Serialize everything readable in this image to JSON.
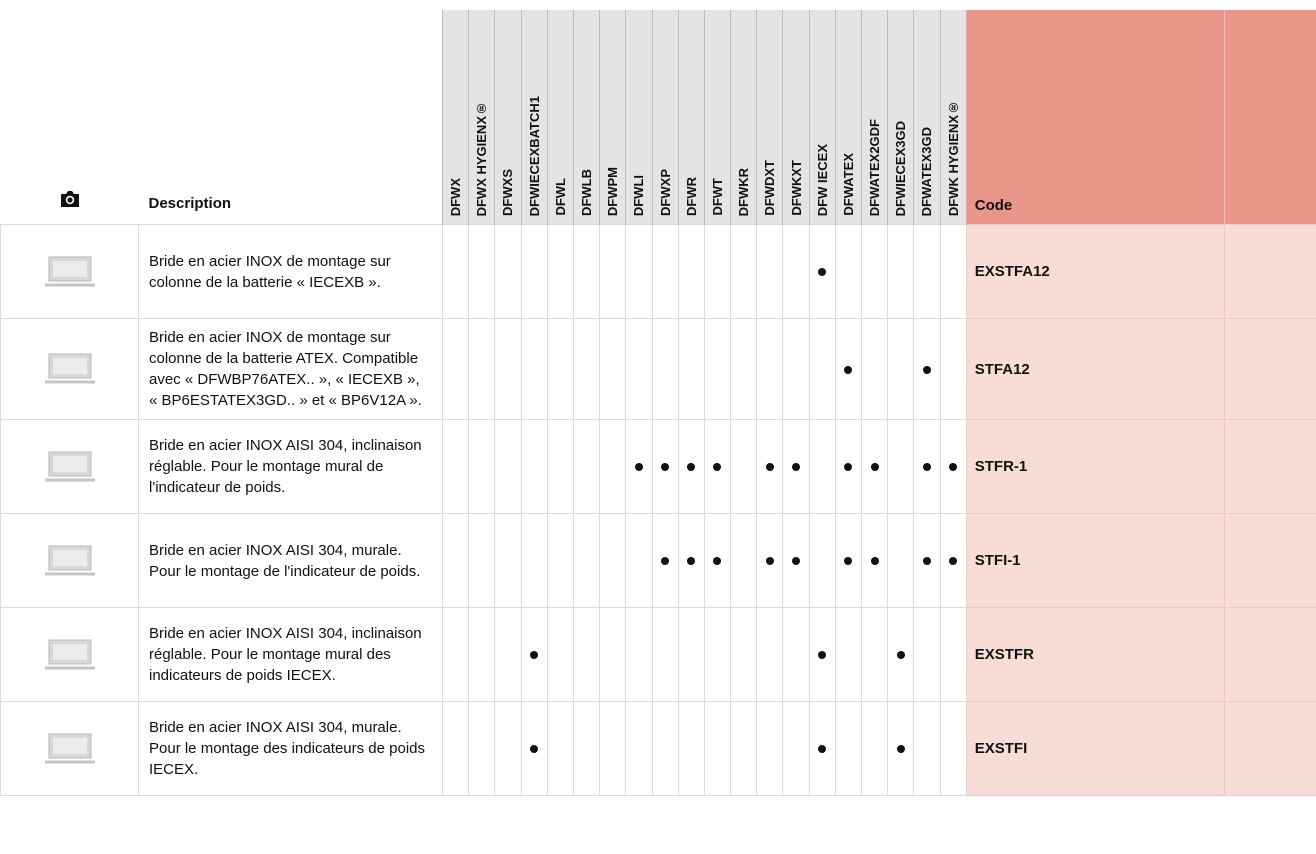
{
  "table": {
    "header": {
      "description": "Description",
      "code": "Code",
      "models": [
        "DFWX",
        "DFWX HYGIENX®",
        "DFWXS",
        "DFWIECEXBATCH1",
        "DFWL",
        "DFWLB",
        "DFWPM",
        "DFWLI",
        "DFWXP",
        "DFWR",
        "DFWT",
        "DFWKR",
        "DFWDXT",
        "DFWKXT",
        "DFW IECEX",
        "DFWATEX",
        "DFWATEX2GDF",
        "DFWIECEX3GD",
        "DFWATEX3GD",
        "DFWK HYGIENX®"
      ]
    },
    "rows": [
      {
        "description": "Bride en acier INOX de montage sur colonne de la batterie « IECEXB ».",
        "code": "EXSTFA12",
        "compatible": [
          "DFW IECEX"
        ]
      },
      {
        "description": "Bride en acier INOX de montage sur colonne de la batterie ATEX. Compatible avec « DFWBP76ATEX.. », « IECEXB », « BP6ESTATEX3GD.. » et « BP6V12A ».",
        "code": "STFA12",
        "compatible": [
          "DFWATEX",
          "DFWATEX3GD"
        ]
      },
      {
        "description": "Bride en acier INOX AISI 304, inclinaison réglable. Pour le montage mural de l'indicateur de poids.",
        "code": "STFR-1",
        "compatible": [
          "DFWLI",
          "DFWXP",
          "DFWR",
          "DFWT",
          "DFWDXT",
          "DFWKXT",
          "DFWATEX",
          "DFWATEX2GDF",
          "DFWATEX3GD",
          "DFWK HYGIENX®"
        ]
      },
      {
        "description": "Bride en acier INOX AISI 304, murale. Pour le montage de l'indicateur de poids.",
        "code": "STFI-1",
        "compatible": [
          "DFWXP",
          "DFWR",
          "DFWT",
          "DFWDXT",
          "DFWKXT",
          "DFWATEX",
          "DFWATEX2GDF",
          "DFWATEX3GD",
          "DFWK HYGIENX®"
        ]
      },
      {
        "description": "Bride en acier INOX AISI 304, inclinaison réglable. Pour le montage mural des indicateurs de poids IECEX.",
        "code": "EXSTFR",
        "compatible": [
          "DFWIECEXBATCH1",
          "DFW IECEX",
          "DFWIECEX3GD"
        ]
      },
      {
        "description": "Bride en acier INOX AISI 304, murale. Pour le montage des indicateurs de poids IECEX.",
        "code": "EXSTFI",
        "compatible": [
          "DFWIECEXBATCH1",
          "DFW IECEX",
          "DFWIECEX3GD"
        ]
      }
    ]
  }
}
